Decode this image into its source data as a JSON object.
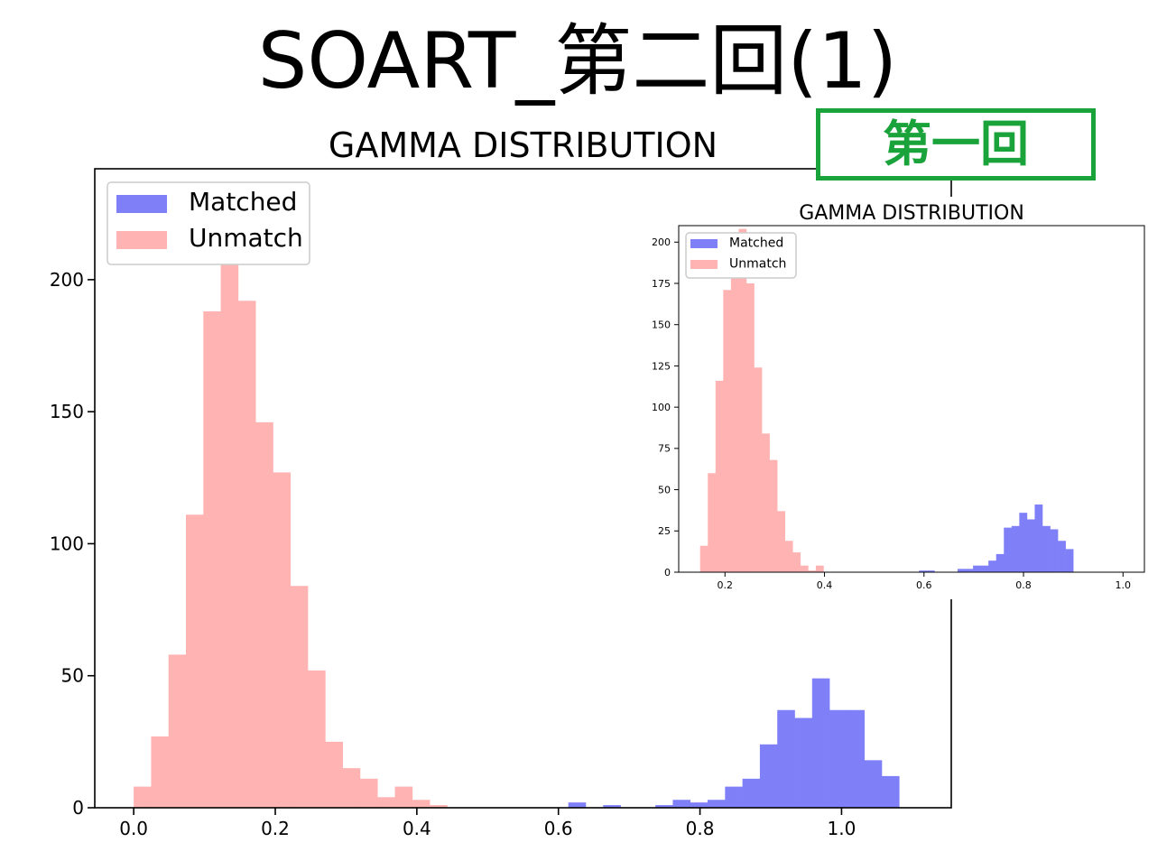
{
  "slide": {
    "title": "SOART_第二回(1)",
    "badge": "第一回"
  },
  "colors": {
    "matched": "#7f7ff7",
    "unmatch": "#ffb3b3",
    "badge": "#1aa33a"
  },
  "chart_data": [
    {
      "type": "bar",
      "title": "GAMMA DISTRIBUTION",
      "xlabel": "",
      "ylabel": "",
      "xlim": [
        -0.055,
        1.155
      ],
      "ylim": [
        0,
        242
      ],
      "xticks": [
        0.0,
        0.2,
        0.4,
        0.6,
        0.8,
        1.0
      ],
      "xtick_labels": [
        "0.0",
        "0.2",
        "0.4",
        "0.6",
        "0.8",
        "1.0"
      ],
      "yticks": [
        0,
        50,
        100,
        150,
        200
      ],
      "ytick_labels": [
        "0",
        "50",
        "100",
        "150",
        "200"
      ],
      "legend_position": "top-left",
      "bin_width": 0.0246,
      "series": [
        {
          "name": "Unmatch",
          "color": "#ffb3b3",
          "bin_start": 0.0,
          "values": [
            8,
            27,
            58,
            111,
            188,
            216,
            192,
            146,
            127,
            84,
            52,
            25,
            15,
            11,
            4,
            8,
            3,
            1
          ]
        },
        {
          "name": "Matched",
          "color": "#7f7ff7",
          "bin_start": 0.614,
          "values": [
            2,
            0,
            1,
            0,
            0,
            1,
            3,
            2,
            3,
            8,
            11,
            24,
            37,
            34,
            49,
            37,
            37,
            18,
            12
          ]
        }
      ]
    },
    {
      "type": "bar",
      "title": "GAMMA DISTRIBUTION",
      "xlabel": "",
      "ylabel": "",
      "xlim": [
        0.107,
        1.043
      ],
      "ylim": [
        0,
        210
      ],
      "xticks": [
        0.2,
        0.4,
        0.6,
        0.8,
        1.0
      ],
      "xtick_labels": [
        "0.2",
        "0.4",
        "0.6",
        "0.8",
        "1.0"
      ],
      "yticks": [
        0,
        25,
        50,
        75,
        100,
        125,
        150,
        175,
        200
      ],
      "ytick_labels": [
        "0",
        "25",
        "50",
        "75",
        "100",
        "125",
        "150",
        "175",
        "200"
      ],
      "legend_position": "top-left",
      "bin_width": 0.0155,
      "series": [
        {
          "name": "Unmatch",
          "color": "#ffb3b3",
          "bin_start": 0.15,
          "values": [
            16,
            60,
            116,
            171,
            206,
            208,
            175,
            124,
            84,
            68,
            37,
            19,
            12,
            4,
            1,
            4
          ]
        },
        {
          "name": "Matched",
          "color": "#7f7ff7",
          "bin_start": 0.59,
          "values": [
            1,
            1,
            0,
            0,
            0,
            2,
            2,
            4,
            4,
            7,
            11,
            27,
            28,
            36,
            32,
            41,
            28,
            26,
            19,
            14
          ]
        }
      ]
    }
  ]
}
